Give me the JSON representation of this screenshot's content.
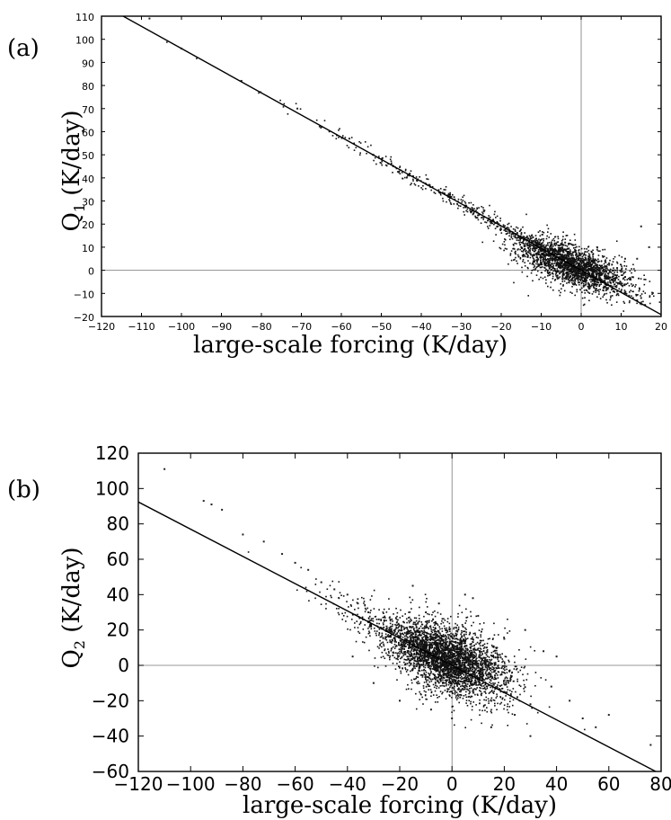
{
  "chart_data": [
    {
      "type": "scatter",
      "panel_label": "(a)",
      "xlabel": "large-scale forcing (K/day)",
      "ylabel_main": "Q",
      "ylabel_sub": "1",
      "ylabel_units": " (K/day)",
      "xlim": [
        -120,
        20
      ],
      "ylim": [
        -20,
        110
      ],
      "xticks": [
        -120,
        -110,
        -100,
        -90,
        -80,
        -70,
        -60,
        -50,
        -40,
        -30,
        -20,
        -10,
        0,
        10,
        20
      ],
      "yticks": [
        -20,
        -10,
        0,
        10,
        20,
        30,
        40,
        50,
        60,
        70,
        80,
        90,
        100,
        110
      ],
      "zero_lines": true,
      "fit_line": {
        "slope": -0.96,
        "intercept": 0
      },
      "cluster": {
        "center": [
          -2,
          2
        ],
        "spread": [
          7,
          4.5
        ]
      },
      "series": [
        {
          "points": [
            [
              -108,
              109
            ],
            [
              -100,
              96
            ],
            [
              -85,
              82
            ],
            [
              -71,
              70
            ],
            [
              -65,
              62
            ],
            [
              -58,
              57
            ],
            [
              -52,
              50
            ],
            [
              -47,
              45
            ],
            [
              -43,
              41
            ],
            [
              -38,
              37
            ],
            [
              -33,
              32
            ],
            [
              -29,
              28
            ],
            [
              -26,
              25
            ],
            [
              -23,
              22
            ],
            [
              -21,
              19
            ],
            [
              -18,
              17
            ],
            [
              -16,
              14
            ],
            [
              -13,
              12
            ],
            [
              -11,
              10
            ],
            [
              -9,
              9
            ],
            [
              -7,
              6
            ],
            [
              -5,
              5
            ],
            [
              -3,
              3
            ],
            [
              -1,
              1
            ],
            [
              0,
              0
            ],
            [
              2,
              -2
            ],
            [
              4,
              -4
            ],
            [
              6,
              -6
            ],
            [
              8,
              -8
            ],
            [
              10,
              -9
            ],
            [
              12,
              -11
            ],
            [
              14,
              -13
            ],
            [
              16,
              -15
            ],
            [
              -4,
              12
            ],
            [
              1,
              8
            ],
            [
              3,
              5
            ],
            [
              5,
              -1
            ],
            [
              7,
              3
            ],
            [
              9,
              1
            ],
            [
              11,
              5
            ],
            [
              15,
              19
            ],
            [
              17,
              10
            ],
            [
              13,
              -3
            ],
            [
              -6,
              -3
            ],
            [
              -2,
              -6
            ],
            [
              2,
              -8
            ],
            [
              4,
              10
            ],
            [
              6,
              4
            ],
            [
              14,
              5
            ],
            [
              15,
              -12
            ]
          ]
        }
      ]
    },
    {
      "type": "scatter",
      "panel_label": "(b)",
      "xlabel": "large-scale forcing (K/day)",
      "ylabel_main": "Q",
      "ylabel_sub": "2",
      "ylabel_units": " (K/day)",
      "xlim": [
        -120,
        80
      ],
      "ylim": [
        -60,
        120
      ],
      "xticks": [
        -120,
        -100,
        -80,
        -60,
        -40,
        -20,
        0,
        20,
        40,
        60,
        80
      ],
      "yticks": [
        -60,
        -40,
        -20,
        0,
        20,
        40,
        60,
        80,
        100,
        120
      ],
      "zero_lines": true,
      "fit_line": {
        "slope": -0.77,
        "intercept": 0
      },
      "cluster": {
        "center": [
          0,
          3
        ],
        "spread": [
          11,
          10
        ]
      },
      "series": [
        {
          "points": [
            [
              -110,
              111
            ],
            [
              -95,
              93
            ],
            [
              -92,
              91
            ],
            [
              -88,
              88
            ],
            [
              -80,
              74
            ],
            [
              -72,
              70
            ],
            [
              -65,
              63
            ],
            [
              -60,
              58
            ],
            [
              -55,
              54
            ],
            [
              -50,
              47
            ],
            [
              -45,
              43
            ],
            [
              -40,
              40
            ],
            [
              -36,
              35
            ],
            [
              -32,
              30
            ],
            [
              -28,
              26
            ],
            [
              -25,
              22
            ],
            [
              -22,
              20
            ],
            [
              -18,
              15
            ],
            [
              -15,
              12
            ],
            [
              -12,
              10
            ],
            [
              -8,
              6
            ],
            [
              -5,
              4
            ],
            [
              -2,
              2
            ],
            [
              0,
              0
            ],
            [
              4,
              -2
            ],
            [
              8,
              -5
            ],
            [
              12,
              -8
            ],
            [
              16,
              -11
            ],
            [
              20,
              -15
            ],
            [
              25,
              -18
            ],
            [
              30,
              -22
            ],
            [
              35,
              8
            ],
            [
              40,
              5
            ],
            [
              45,
              -20
            ],
            [
              50,
              -30
            ],
            [
              55,
              -35
            ],
            [
              60,
              -28
            ],
            [
              -10,
              30
            ],
            [
              -5,
              35
            ],
            [
              0,
              -30
            ],
            [
              5,
              40
            ],
            [
              10,
              28
            ],
            [
              15,
              -35
            ],
            [
              20,
              15
            ],
            [
              -30,
              -10
            ],
            [
              -20,
              -20
            ],
            [
              30,
              -40
            ],
            [
              38,
              -12
            ],
            [
              28,
              20
            ],
            [
              -38,
              5
            ],
            [
              76,
              -45
            ],
            [
              -15,
              45
            ],
            [
              8,
              38
            ],
            [
              -8,
              -25
            ],
            [
              24,
              -28
            ]
          ]
        }
      ]
    }
  ]
}
